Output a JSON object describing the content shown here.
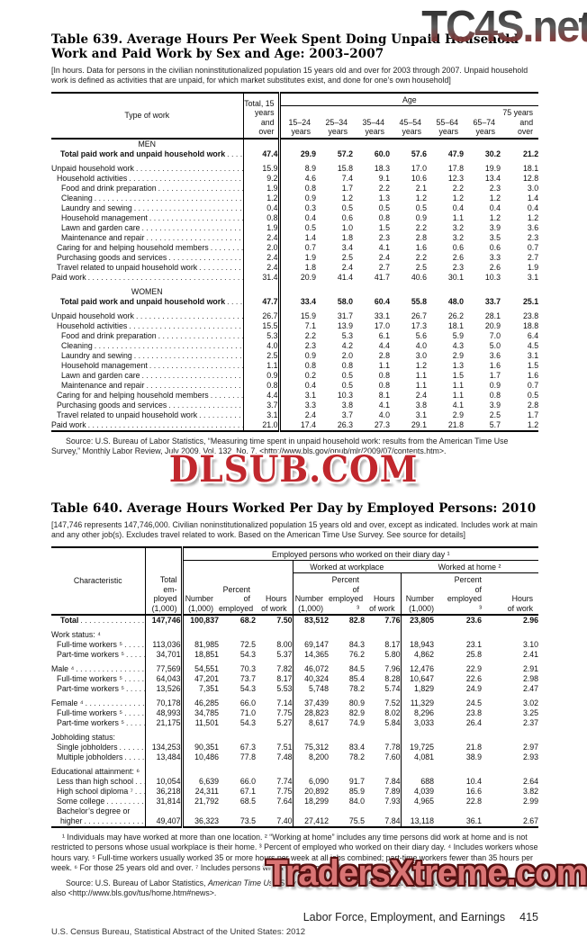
{
  "watermarks": {
    "top": "TC4S.net",
    "middle": "DLSUB.COM",
    "bottom": "TradersXtreme.com",
    "colors": {
      "dlsub_red": "#c1272d",
      "traders_fill": "#d97474",
      "traders_outline": "#541111",
      "tc4s_dark": "#2f2f2f",
      "tc4s_maroon": "#8f4640"
    }
  },
  "table639": {
    "title": "Table 639. Average Hours Per Week Spent Doing Unpaid Household Work and Paid Work by Sex and Age: 2003–2007",
    "note": "[In hours. Data for persons in the civilian noninstitutionalized population 15 years old and over for 2003 through 2007. Unpaid household work is defined as activities that are unpaid, for which market substitutes exist, and done for one’s own household]",
    "stub_header": "Type of work",
    "age_spanner": "Age",
    "col_headers": [
      "Total, 15\nyears\nand\nover",
      "15–24\nyears",
      "25–34\nyears",
      "35–44\nyears",
      "45–54\nyears",
      "55–64\nyears",
      "65–74\nyears",
      "75 years\nand\nover"
    ],
    "sections": [
      {
        "heading": "MEN",
        "total_label": "Total paid work and unpaid household work",
        "total": [
          "47.4",
          "29.9",
          "57.2",
          "60.0",
          "57.6",
          "47.9",
          "30.2",
          "21.2"
        ],
        "rows": [
          {
            "label": "Unpaid household work",
            "lvl": 0,
            "v": [
              "15.9",
              "8.9",
              "15.8",
              "18.3",
              "17.0",
              "17.8",
              "19.9",
              "18.1"
            ]
          },
          {
            "label": "Household activities",
            "lvl": 1,
            "v": [
              "9.2",
              "4.6",
              "7.4",
              "9.1",
              "10.6",
              "12.3",
              "13.4",
              "12.8"
            ]
          },
          {
            "label": "Food and drink preparation",
            "lvl": 2,
            "v": [
              "1.9",
              "0.8",
              "1.7",
              "2.2",
              "2.1",
              "2.2",
              "2.3",
              "3.0"
            ]
          },
          {
            "label": "Cleaning",
            "lvl": 2,
            "v": [
              "1.2",
              "0.9",
              "1.2",
              "1.3",
              "1.2",
              "1.2",
              "1.2",
              "1.4"
            ]
          },
          {
            "label": "Laundry and sewing",
            "lvl": 2,
            "v": [
              "0.4",
              "0.3",
              "0.5",
              "0.5",
              "0.5",
              "0.4",
              "0.4",
              "0.4"
            ]
          },
          {
            "label": "Household management",
            "lvl": 2,
            "v": [
              "0.8",
              "0.4",
              "0.6",
              "0.8",
              "0.9",
              "1.1",
              "1.2",
              "1.2"
            ]
          },
          {
            "label": "Lawn and garden care",
            "lvl": 2,
            "v": [
              "1.9",
              "0.5",
              "1.0",
              "1.5",
              "2.2",
              "3.2",
              "3.9",
              "3.6"
            ]
          },
          {
            "label": "Maintenance and repair",
            "lvl": 2,
            "v": [
              "2.4",
              "1.4",
              "1.8",
              "2.3",
              "2.8",
              "3.2",
              "3.5",
              "2.3"
            ]
          },
          {
            "label": "Caring for and helping household members",
            "lvl": 1,
            "v": [
              "2.0",
              "0.7",
              "3.4",
              "4.1",
              "1.6",
              "0.6",
              "0.6",
              "0.7"
            ]
          },
          {
            "label": "Purchasing goods and services",
            "lvl": 1,
            "v": [
              "2.4",
              "1.9",
              "2.5",
              "2.4",
              "2.2",
              "2.6",
              "3.3",
              "2.7"
            ]
          },
          {
            "label": "Travel related to unpaid household work",
            "lvl": 1,
            "v": [
              "2.4",
              "1.8",
              "2.4",
              "2.7",
              "2.5",
              "2.3",
              "2.6",
              "1.9"
            ]
          },
          {
            "label": "Paid work",
            "lvl": 0,
            "v": [
              "31.4",
              "20.9",
              "41.4",
              "41.7",
              "40.6",
              "30.1",
              "10.3",
              "3.1"
            ]
          }
        ]
      },
      {
        "heading": "WOMEN",
        "total_label": "Total paid work and unpaid household work",
        "total": [
          "47.7",
          "33.4",
          "58.0",
          "60.4",
          "55.8",
          "48.0",
          "33.7",
          "25.1"
        ],
        "rows": [
          {
            "label": "Unpaid household work",
            "lvl": 0,
            "v": [
              "26.7",
              "15.9",
              "31.7",
              "33.1",
              "26.7",
              "26.2",
              "28.1",
              "23.8"
            ]
          },
          {
            "label": "Household activities",
            "lvl": 1,
            "v": [
              "15.5",
              "7.1",
              "13.9",
              "17.0",
              "17.3",
              "18.1",
              "20.9",
              "18.8"
            ]
          },
          {
            "label": "Food and drink preparation",
            "lvl": 2,
            "v": [
              "5.3",
              "2.2",
              "5.3",
              "6.1",
              "5.6",
              "5.9",
              "7.0",
              "6.4"
            ]
          },
          {
            "label": "Cleaning",
            "lvl": 2,
            "v": [
              "4.0",
              "2.3",
              "4.2",
              "4.4",
              "4.0",
              "4.3",
              "5.0",
              "4.5"
            ]
          },
          {
            "label": "Laundry and sewing",
            "lvl": 2,
            "v": [
              "2.5",
              "0.9",
              "2.0",
              "2.8",
              "3.0",
              "2.9",
              "3.6",
              "3.1"
            ]
          },
          {
            "label": "Household management",
            "lvl": 2,
            "v": [
              "1.1",
              "0.8",
              "0.8",
              "1.1",
              "1.2",
              "1.3",
              "1.6",
              "1.5"
            ]
          },
          {
            "label": "Lawn and garden care",
            "lvl": 2,
            "v": [
              "0.9",
              "0.2",
              "0.5",
              "0.8",
              "1.1",
              "1.5",
              "1.7",
              "1.6"
            ]
          },
          {
            "label": "Maintenance and repair",
            "lvl": 2,
            "v": [
              "0.8",
              "0.4",
              "0.5",
              "0.8",
              "1.1",
              "1.1",
              "0.9",
              "0.7"
            ]
          },
          {
            "label": "Caring for and helping household members",
            "lvl": 1,
            "v": [
              "4.4",
              "3.1",
              "10.3",
              "8.1",
              "2.4",
              "1.1",
              "0.8",
              "0.5"
            ]
          },
          {
            "label": "Purchasing goods and services",
            "lvl": 1,
            "v": [
              "3.7",
              "3.3",
              "3.8",
              "4.1",
              "3.8",
              "4.1",
              "3.9",
              "2.8"
            ]
          },
          {
            "label": "Travel related to unpaid household work",
            "lvl": 1,
            "v": [
              "3.1",
              "2.4",
              "3.7",
              "4.0",
              "3.1",
              "2.9",
              "2.5",
              "1.7"
            ]
          },
          {
            "label": "Paid work",
            "lvl": 0,
            "v": [
              "21.0",
              "17.4",
              "26.3",
              "27.3",
              "29.1",
              "21.8",
              "5.7",
              "1.2"
            ]
          }
        ]
      }
    ],
    "source": "Source: U.S. Bureau of Labor Statistics, “Measuring time spent in unpaid household work: results from the American Time Use Survey,” Monthly Labor Review, July 2009, Vol. 132, No. 7, <http://www.bls.gov/opub/mlr/2009/07/contents.htm>."
  },
  "table640": {
    "title": "Table 640. Average Hours Worked Per Day by Employed Persons: 2010",
    "note": "[147,746 represents 147,746,000. Civilian noninstitutionalized population 15 years old and over, except as indicated. Includes work at main and any other job(s). Excludes travel related to work. Based on the American Time Use Survey. See source for details]",
    "stub_header": "Characteristic",
    "total_col_header": "Total\nem-\nployed\n(1,000)",
    "diary_spanner": "Employed persons who worked on their diary day ¹",
    "workplace_spanner": "Worked at workplace",
    "home_spanner": "Worked at home ²",
    "sub_headers": [
      "Number\n(1,000)",
      "Percent\nof\nemployed",
      "Hours\nof work",
      "Number\n(1,000)",
      "Percent of\nemployed ³",
      "Hours\nof work",
      "Number\n(1,000)",
      "Percent of\nemployed ³",
      "Hours\nof work"
    ],
    "rows": [
      {
        "kind": "data",
        "label": "Total",
        "bold": true,
        "lvl": "b",
        "v": [
          "147,746",
          "100,837",
          "68.2",
          "7.50",
          "83,512",
          "82.8",
          "7.76",
          "23,805",
          "23.6",
          "2.96"
        ]
      },
      {
        "kind": "group",
        "label": "Work status: ⁴",
        "gap": true
      },
      {
        "kind": "data",
        "label": "Full-time workers ⁵",
        "lvl": 1,
        "v": [
          "113,036",
          "81,985",
          "72.5",
          "8.00",
          "69,147",
          "84.3",
          "8.17",
          "18,943",
          "23.1",
          "3.10"
        ]
      },
      {
        "kind": "data",
        "label": "Part-time workers ⁵",
        "lvl": 1,
        "v": [
          "34,701",
          "18,851",
          "54.3",
          "5.37",
          "14,365",
          "76.2",
          "5.80",
          "4,862",
          "25.8",
          "2.41"
        ]
      },
      {
        "kind": "data",
        "label": "Male ⁴",
        "lvl": 0,
        "gap": true,
        "v": [
          "77,569",
          "54,551",
          "70.3",
          "7.82",
          "46,072",
          "84.5",
          "7.96",
          "12,476",
          "22.9",
          "2.91"
        ]
      },
      {
        "kind": "data",
        "label": "Full-time workers ⁵",
        "lvl": 1,
        "v": [
          "64,043",
          "47,201",
          "73.7",
          "8.17",
          "40,324",
          "85.4",
          "8.28",
          "10,647",
          "22.6",
          "2.98"
        ]
      },
      {
        "kind": "data",
        "label": "Part-time workers ⁵",
        "lvl": 1,
        "v": [
          "13,526",
          "7,351",
          "54.3",
          "5.53",
          "5,748",
          "78.2",
          "5.74",
          "1,829",
          "24.9",
          "2.47"
        ]
      },
      {
        "kind": "data",
        "label": "Female ⁴",
        "lvl": 0,
        "gap": true,
        "v": [
          "70,178",
          "46,285",
          "66.0",
          "7.14",
          "37,439",
          "80.9",
          "7.52",
          "11,329",
          "24.5",
          "3.02"
        ]
      },
      {
        "kind": "data",
        "label": "Full-time workers ⁵",
        "lvl": 1,
        "v": [
          "48,993",
          "34,785",
          "71.0",
          "7.75",
          "28,823",
          "82.9",
          "8.02",
          "8,296",
          "23.8",
          "3.25"
        ]
      },
      {
        "kind": "data",
        "label": "Part-time workers ⁵",
        "lvl": 1,
        "v": [
          "21,175",
          "11,501",
          "54.3",
          "5.27",
          "8,617",
          "74.9",
          "5.84",
          "3,033",
          "26.4",
          "2.37"
        ]
      },
      {
        "kind": "group",
        "label": "Jobholding status:",
        "gap": true
      },
      {
        "kind": "data",
        "label": "Single jobholders",
        "lvl": 1,
        "v": [
          "134,253",
          "90,351",
          "67.3",
          "7.51",
          "75,312",
          "83.4",
          "7.78",
          "19,725",
          "21.8",
          "2.97"
        ]
      },
      {
        "kind": "data",
        "label": "Multiple jobholders",
        "lvl": 1,
        "v": [
          "13,484",
          "10,486",
          "77.8",
          "7.48",
          "8,200",
          "78.2",
          "7.60",
          "4,081",
          "38.9",
          "2.93"
        ]
      },
      {
        "kind": "group",
        "label": "Educational attainment: ⁶",
        "gap": true
      },
      {
        "kind": "data",
        "label": "Less than high school",
        "lvl": 1,
        "v": [
          "10,054",
          "6,639",
          "66.0",
          "7.74",
          "6,090",
          "91.7",
          "7.84",
          "688",
          "10.4",
          "2.64"
        ]
      },
      {
        "kind": "data",
        "label": "High school diploma ⁷",
        "lvl": 1,
        "v": [
          "36,218",
          "24,311",
          "67.1",
          "7.75",
          "20,892",
          "85.9",
          "7.89",
          "4,039",
          "16.6",
          "3.82"
        ]
      },
      {
        "kind": "data",
        "label": "Some college",
        "lvl": 1,
        "v": [
          "31,814",
          "21,792",
          "68.5",
          "7.64",
          "18,299",
          "84.0",
          "7.93",
          "4,965",
          "22.8",
          "2.99"
        ]
      },
      {
        "kind": "data2",
        "label": "Bachelor’s degree or",
        "label2": "higher",
        "lvl": 1,
        "v": [
          "49,407",
          "36,323",
          "73.5",
          "7.40",
          "27,412",
          "75.5",
          "7.84",
          "13,118",
          "36.1",
          "2.67"
        ]
      }
    ],
    "footnotes": "¹ Individuals may have worked at more than one location. ² “Working at home” includes any time persons did work at home and is not restricted to persons whose usual workplace is their home. ³ Percent of employed who worked on their diary day. ⁴ Includes workers whose hours vary. ⁵ Full-time workers usually worked 35 or more hours per week at all jobs combined; part-time workers fewer than 35 hours per week. ⁶ For those 25 years old and over. ⁷ Includes persons with a high school diploma or equivalent.",
    "source_prefix": "Source: U.S. Bureau of Labor Statistics, ",
    "source_italic": "American Time Use Survey—2010 Results",
    "source_suffix": ", News Release, USDL 11-0919, June 2011. See also <http://www.bls.gov/tus/home.htm#news>."
  },
  "footer": {
    "running_head": "Labor Force, Employment, and Earnings",
    "page_number": "415",
    "imprint": "U.S. Census Bureau, Statistical Abstract of the United States: 2012"
  }
}
